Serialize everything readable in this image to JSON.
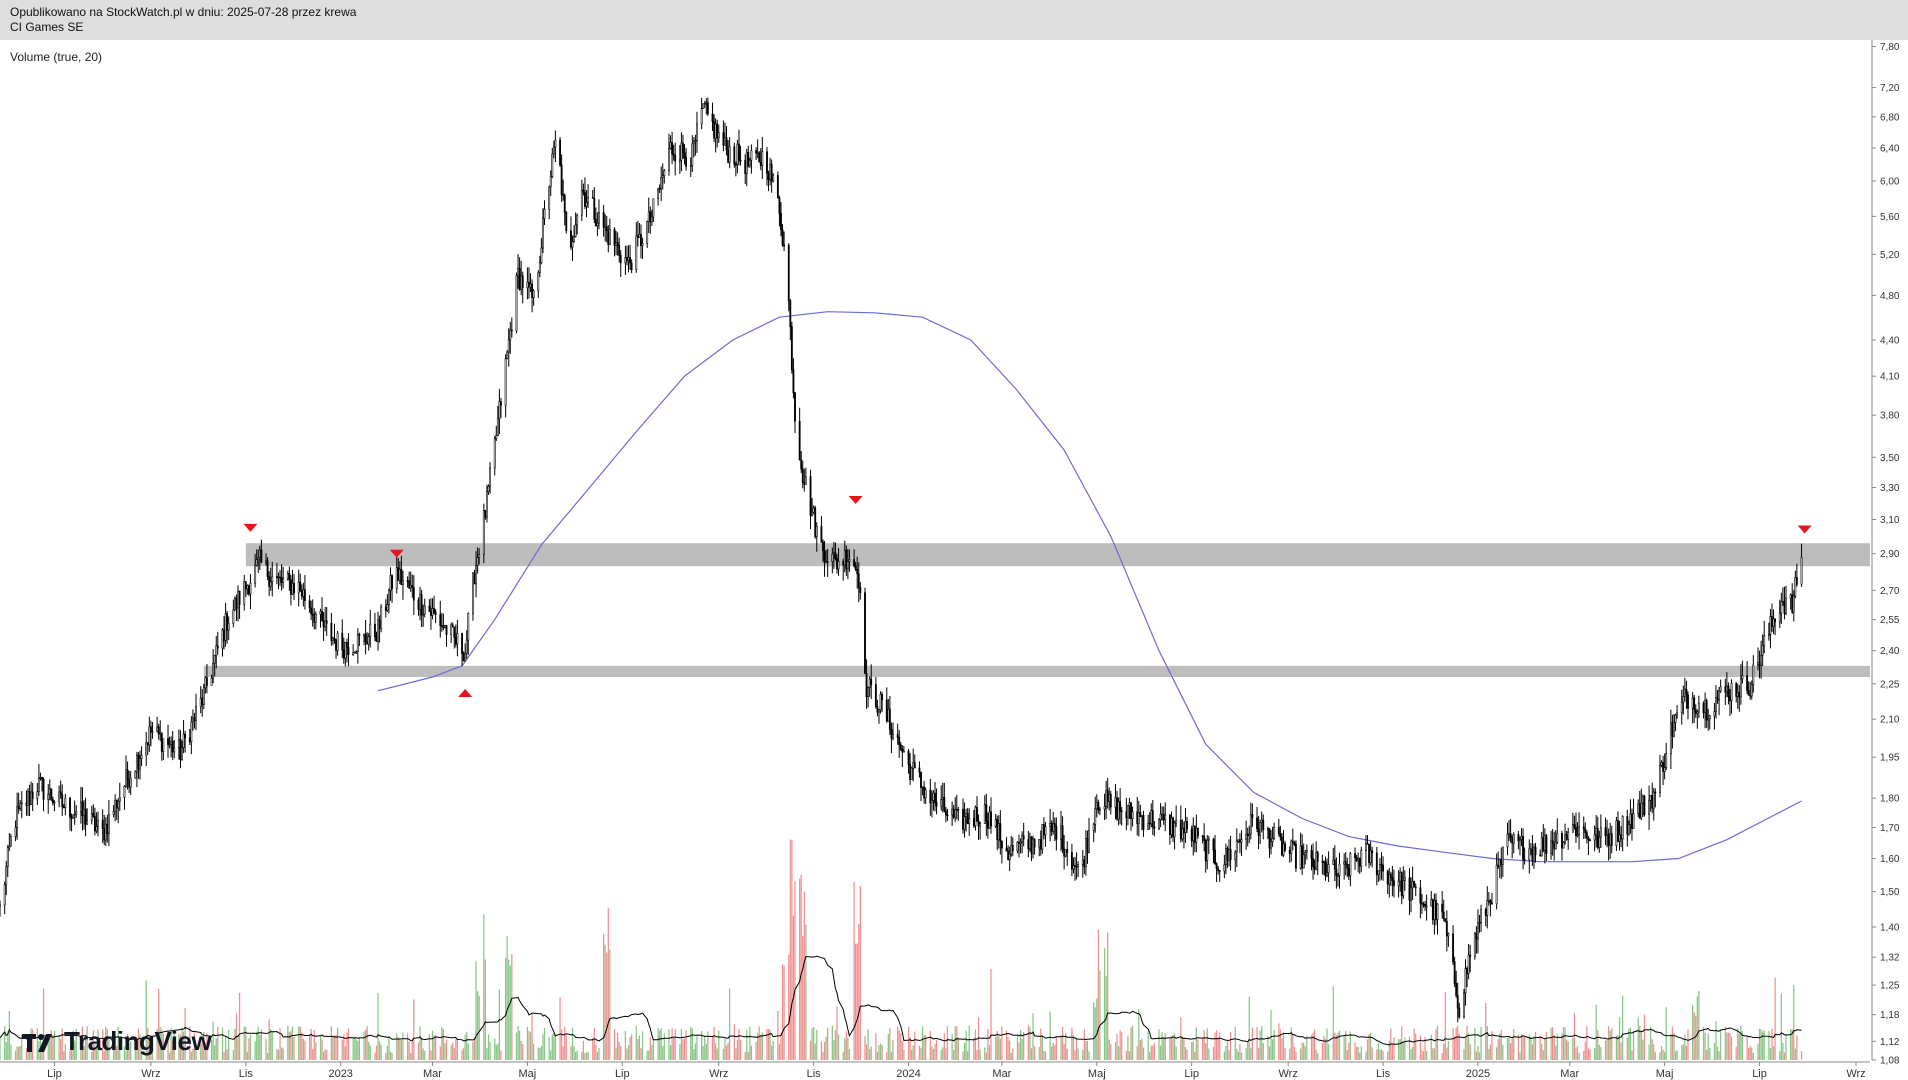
{
  "header": {
    "published": "Opublikowano na StockWatch.pl w dniu: 2025-07-28 przez krewa",
    "instrument": "CI Games SE"
  },
  "indicator_label": "Volume (true, 20)",
  "brand": "TradingView",
  "icons": {
    "logo": "tradingview-logo-icon",
    "resistance_marker": "red-triangle-down-icon",
    "support_marker": "red-triangle-up-icon"
  },
  "colors": {
    "candle": "#000000",
    "ma_line": "#6b6bd6",
    "zone": "#bdbdbd",
    "marker": "#e8141b",
    "volume_up": "#86c786",
    "volume_down": "#f08f8f",
    "volume_ma": "#000000"
  },
  "chart_data": {
    "type": "candlestick",
    "title": "CI Games SE",
    "y_scale": "log",
    "ylim": [
      1.08,
      7.9
    ],
    "y_ticks": [
      "7,80",
      "7,20",
      "6,80",
      "6,40",
      "6,00",
      "5,60",
      "5,20",
      "4,80",
      "4,40",
      "4,10",
      "3,80",
      "3,50",
      "3,30",
      "3,10",
      "2,90",
      "2,70",
      "2,55",
      "2,40",
      "2,25",
      "2,10",
      "1,95",
      "1,80",
      "1,70",
      "1,60",
      "1,50",
      "1,40",
      "1,32",
      "1,25",
      "1,18",
      "1,12",
      "1,08"
    ],
    "y_tick_values": [
      7.8,
      7.2,
      6.8,
      6.4,
      6.0,
      5.6,
      5.2,
      4.8,
      4.4,
      4.1,
      3.8,
      3.5,
      3.3,
      3.1,
      2.9,
      2.7,
      2.55,
      2.4,
      2.25,
      2.1,
      1.95,
      1.8,
      1.7,
      1.6,
      1.5,
      1.4,
      1.32,
      1.25,
      1.18,
      1.12,
      1.08
    ],
    "x_range": [
      "2022-05-27",
      "2025-09-10"
    ],
    "x_ticks": [
      {
        "label": "Lip",
        "date": "2022-07-01"
      },
      {
        "label": "Wrz",
        "date": "2022-09-01"
      },
      {
        "label": "Lis",
        "date": "2022-11-01"
      },
      {
        "label": "2023",
        "date": "2023-01-01"
      },
      {
        "label": "Mar",
        "date": "2023-03-01"
      },
      {
        "label": "Maj",
        "date": "2023-05-01"
      },
      {
        "label": "Lip",
        "date": "2023-07-01"
      },
      {
        "label": "Wrz",
        "date": "2023-09-01"
      },
      {
        "label": "Lis",
        "date": "2023-11-01"
      },
      {
        "label": "2024",
        "date": "2024-01-01"
      },
      {
        "label": "Mar",
        "date": "2024-03-01"
      },
      {
        "label": "Maj",
        "date": "2024-05-01"
      },
      {
        "label": "Lip",
        "date": "2024-07-01"
      },
      {
        "label": "Wrz",
        "date": "2024-09-01"
      },
      {
        "label": "Lis",
        "date": "2024-11-01"
      },
      {
        "label": "2025",
        "date": "2025-01-01"
      },
      {
        "label": "Mar",
        "date": "2025-03-01"
      },
      {
        "label": "Maj",
        "date": "2025-05-01"
      },
      {
        "label": "Lip",
        "date": "2025-07-01"
      },
      {
        "label": "Wrz",
        "date": "2025-09-01"
      }
    ],
    "price_path": [
      [
        "2022-05-27",
        1.45
      ],
      [
        "2022-06-05",
        1.72
      ],
      [
        "2022-06-20",
        1.85
      ],
      [
        "2022-07-05",
        1.78
      ],
      [
        "2022-07-20",
        1.74
      ],
      [
        "2022-08-01",
        1.68
      ],
      [
        "2022-08-15",
        1.85
      ],
      [
        "2022-09-01",
        2.05
      ],
      [
        "2022-09-20",
        1.97
      ],
      [
        "2022-10-05",
        2.2
      ],
      [
        "2022-10-20",
        2.55
      ],
      [
        "2022-11-01",
        2.72
      ],
      [
        "2022-11-10",
        2.85
      ],
      [
        "2022-11-20",
        2.75
      ],
      [
        "2022-12-05",
        2.72
      ],
      [
        "2022-12-20",
        2.52
      ],
      [
        "2023-01-01",
        2.42
      ],
      [
        "2023-01-15",
        2.45
      ],
      [
        "2023-01-25",
        2.5
      ],
      [
        "2023-02-05",
        2.8
      ],
      [
        "2023-02-20",
        2.65
      ],
      [
        "2023-03-05",
        2.55
      ],
      [
        "2023-03-15",
        2.45
      ],
      [
        "2023-03-22",
        2.4
      ],
      [
        "2023-03-28",
        2.8
      ],
      [
        "2023-04-05",
        3.2
      ],
      [
        "2023-04-15",
        4.0
      ],
      [
        "2023-04-25",
        5.0
      ],
      [
        "2023-05-05",
        4.75
      ],
      [
        "2023-05-15",
        6.0
      ],
      [
        "2023-05-20",
        6.55
      ],
      [
        "2023-05-27",
        5.2
      ],
      [
        "2023-06-05",
        5.9
      ],
      [
        "2023-06-20",
        5.45
      ],
      [
        "2023-07-05",
        5.1
      ],
      [
        "2023-07-20",
        5.6
      ],
      [
        "2023-08-01",
        6.4
      ],
      [
        "2023-08-15",
        6.3
      ],
      [
        "2023-08-22",
        6.9
      ],
      [
        "2023-09-05",
        6.4
      ],
      [
        "2023-09-20",
        6.2
      ],
      [
        "2023-10-01",
        6.3
      ],
      [
        "2023-10-10",
        5.7
      ],
      [
        "2023-10-15",
        5.0
      ],
      [
        "2023-10-20",
        3.8
      ],
      [
        "2023-10-25",
        3.4
      ],
      [
        "2023-11-05",
        2.95
      ],
      [
        "2023-11-15",
        2.85
      ],
      [
        "2023-11-25",
        2.9
      ],
      [
        "2023-12-01",
        2.75
      ],
      [
        "2023-12-04",
        2.25
      ],
      [
        "2023-12-15",
        2.15
      ],
      [
        "2024-01-01",
        1.92
      ],
      [
        "2024-01-15",
        1.8
      ],
      [
        "2024-02-01",
        1.72
      ],
      [
        "2024-02-20",
        1.75
      ],
      [
        "2024-03-05",
        1.62
      ],
      [
        "2024-03-20",
        1.65
      ],
      [
        "2024-04-05",
        1.7
      ],
      [
        "2024-04-20",
        1.55
      ],
      [
        "2024-05-01",
        1.8
      ],
      [
        "2024-05-20",
        1.75
      ],
      [
        "2024-06-10",
        1.72
      ],
      [
        "2024-07-01",
        1.68
      ],
      [
        "2024-07-20",
        1.58
      ],
      [
        "2024-08-10",
        1.72
      ],
      [
        "2024-09-01",
        1.62
      ],
      [
        "2024-09-20",
        1.58
      ],
      [
        "2024-10-05",
        1.55
      ],
      [
        "2024-10-20",
        1.62
      ],
      [
        "2024-11-05",
        1.55
      ],
      [
        "2024-11-25",
        1.48
      ],
      [
        "2024-12-10",
        1.42
      ],
      [
        "2024-12-20",
        1.2
      ],
      [
        "2024-12-28",
        1.35
      ],
      [
        "2025-01-10",
        1.5
      ],
      [
        "2025-01-20",
        1.65
      ],
      [
        "2025-02-05",
        1.63
      ],
      [
        "2025-02-20",
        1.66
      ],
      [
        "2025-03-05",
        1.7
      ],
      [
        "2025-03-20",
        1.66
      ],
      [
        "2025-04-01",
        1.69
      ],
      [
        "2025-04-15",
        1.76
      ],
      [
        "2025-04-25",
        1.82
      ],
      [
        "2025-05-05",
        2.05
      ],
      [
        "2025-05-15",
        2.2
      ],
      [
        "2025-05-28",
        2.15
      ],
      [
        "2025-06-10",
        2.22
      ],
      [
        "2025-06-25",
        2.25
      ],
      [
        "2025-07-05",
        2.45
      ],
      [
        "2025-07-15",
        2.65
      ],
      [
        "2025-07-22",
        2.62
      ],
      [
        "2025-07-28",
        2.88
      ]
    ],
    "ma_line": [
      [
        "2023-01-25",
        2.22
      ],
      [
        "2023-03-01",
        2.28
      ],
      [
        "2023-03-20",
        2.33
      ],
      [
        "2023-04-10",
        2.55
      ],
      [
        "2023-05-10",
        2.95
      ],
      [
        "2023-06-10",
        3.3
      ],
      [
        "2023-07-10",
        3.68
      ],
      [
        "2023-08-10",
        4.1
      ],
      [
        "2023-09-10",
        4.4
      ],
      [
        "2023-10-10",
        4.6
      ],
      [
        "2023-11-10",
        4.65
      ],
      [
        "2023-12-10",
        4.64
      ],
      [
        "2024-01-10",
        4.6
      ],
      [
        "2024-02-10",
        4.4
      ],
      [
        "2024-03-10",
        4.0
      ],
      [
        "2024-04-10",
        3.55
      ],
      [
        "2024-05-10",
        3.0
      ],
      [
        "2024-06-10",
        2.4
      ],
      [
        "2024-07-10",
        2.0
      ],
      [
        "2024-08-10",
        1.82
      ],
      [
        "2024-09-10",
        1.73
      ],
      [
        "2024-10-10",
        1.67
      ],
      [
        "2024-11-10",
        1.64
      ],
      [
        "2024-12-10",
        1.62
      ],
      [
        "2025-01-10",
        1.6
      ],
      [
        "2025-02-10",
        1.59
      ],
      [
        "2025-03-10",
        1.59
      ],
      [
        "2025-04-10",
        1.59
      ],
      [
        "2025-05-10",
        1.6
      ],
      [
        "2025-06-10",
        1.66
      ],
      [
        "2025-07-10",
        1.74
      ],
      [
        "2025-07-28",
        1.79
      ]
    ],
    "zones": [
      {
        "low": 2.83,
        "high": 2.96,
        "start": "2022-11-01",
        "end": "2025-09-10"
      },
      {
        "low": 2.28,
        "high": 2.33,
        "start": "2022-10-05",
        "end": "2025-09-10"
      }
    ],
    "markers": [
      {
        "date": "2022-11-04",
        "value": 3.05,
        "direction": "down"
      },
      {
        "date": "2023-02-06",
        "value": 2.9,
        "direction": "down"
      },
      {
        "date": "2023-03-22",
        "value": 2.21,
        "direction": "up"
      },
      {
        "date": "2023-11-28",
        "value": 3.22,
        "direction": "down"
      },
      {
        "date": "2025-07-30",
        "value": 3.04,
        "direction": "down"
      }
    ],
    "volume_spikes": [
      {
        "date": "2023-04-01",
        "value": 0.45
      },
      {
        "date": "2023-04-18",
        "value": 0.55
      },
      {
        "date": "2023-06-20",
        "value": 0.75
      },
      {
        "date": "2023-10-15",
        "value": 0.55
      },
      {
        "date": "2023-10-20",
        "value": 1.0
      },
      {
        "date": "2023-10-25",
        "value": 0.85
      },
      {
        "date": "2023-11-28",
        "value": 0.8
      },
      {
        "date": "2024-05-05",
        "value": 0.6
      },
      {
        "date": "2024-05-01",
        "value": 0.35
      },
      {
        "date": "2025-05-20",
        "value": 0.3
      }
    ]
  }
}
